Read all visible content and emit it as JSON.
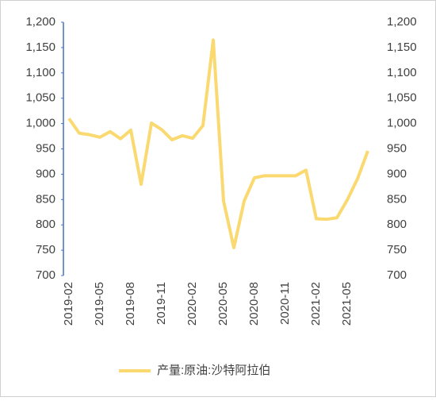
{
  "chart_data": {
    "type": "line",
    "categories": [
      "2019-02",
      null,
      null,
      "2019-05",
      null,
      null,
      "2019-08",
      null,
      null,
      "2019-11",
      null,
      null,
      "2020-02",
      null,
      null,
      "2020-05",
      null,
      null,
      "2020-08",
      null,
      null,
      "2020-11",
      null,
      null,
      "2021-02",
      null,
      null,
      "2021-05",
      null,
      null
    ],
    "series": [
      {
        "name": "产量:原油:沙特阿拉伯",
        "color": "#f9d970",
        "values": [
          1010,
          981,
          978,
          973,
          984,
          970,
          987,
          880,
          1001,
          988,
          968,
          976,
          971,
          996,
          1165,
          847,
          755,
          847,
          893,
          897,
          897,
          897,
          897,
          908,
          812,
          811,
          814,
          849,
          891,
          946
        ]
      }
    ],
    "ylim": [
      700,
      1200
    ],
    "yticks": [
      700,
      750,
      800,
      850,
      900,
      950,
      {
        "value": 1000,
        "label": "1,000"
      },
      {
        "value": 1050,
        "label": "1,050"
      },
      {
        "value": 1100,
        "label": "1,100"
      },
      {
        "value": 1150,
        "label": "1,150"
      },
      {
        "value": 1200,
        "label": "1,200"
      }
    ],
    "y2lim": [
      700,
      1200
    ],
    "y2ticks": [
      700,
      750,
      800,
      850,
      900,
      950,
      {
        "value": 1000,
        "label": "1,000"
      },
      {
        "value": 1050,
        "label": "1,050"
      },
      {
        "value": 1100,
        "label": "1,100"
      },
      {
        "value": 1150,
        "label": "1,150"
      },
      {
        "value": 1200,
        "label": "1,200"
      }
    ],
    "grid": false,
    "legend": "bottom"
  }
}
